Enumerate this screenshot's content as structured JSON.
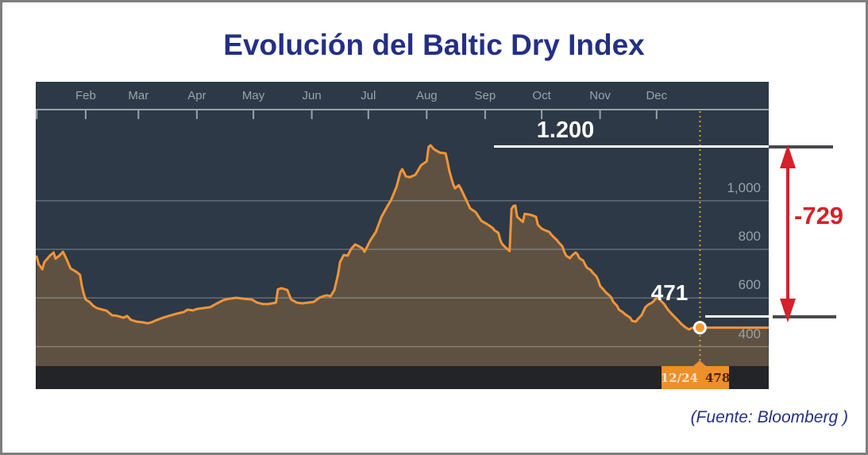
{
  "title": "Evolución del Baltic Dry Index",
  "source": "(Fuente: Bloomberg )",
  "chart_data": {
    "type": "area",
    "title": "Evolución del Baltic Dry Index",
    "legend": "none",
    "grid": "horizontal",
    "x_domain": [
      4.5,
      393.5
    ],
    "y_domain": [
      320,
      1375
    ],
    "x_months": [
      {
        "label": "",
        "day": 5
      },
      {
        "label": "Feb",
        "day": 31
      },
      {
        "label": "Mar",
        "day": 59
      },
      {
        "label": "Apr",
        "day": 90
      },
      {
        "label": "May",
        "day": 120
      },
      {
        "label": "Jun",
        "day": 151
      },
      {
        "label": "Jul",
        "day": 181
      },
      {
        "label": "Aug",
        "day": 212
      },
      {
        "label": "Sep",
        "day": 243
      },
      {
        "label": "Oct",
        "day": 273
      },
      {
        "label": "Nov",
        "day": 304
      },
      {
        "label": "Dec",
        "day": 334
      }
    ],
    "y_ticks": [
      {
        "label": "400",
        "value": 400
      },
      {
        "label": "600",
        "value": 600
      },
      {
        "label": "800",
        "value": 800
      },
      {
        "label": "1,000",
        "value": 1000
      }
    ],
    "series": [
      {
        "name": "Baltic Dry Index",
        "points": [
          [
            5,
            770
          ],
          [
            6,
            740
          ],
          [
            8,
            718
          ],
          [
            9,
            747
          ],
          [
            12,
            774
          ],
          [
            14,
            787
          ],
          [
            15,
            762
          ],
          [
            17,
            774
          ],
          [
            19,
            790
          ],
          [
            21,
            757
          ],
          [
            23,
            721
          ],
          [
            26,
            708
          ],
          [
            28,
            695
          ],
          [
            29,
            650
          ],
          [
            30,
            617
          ],
          [
            31,
            594
          ],
          [
            33,
            584
          ],
          [
            35,
            568
          ],
          [
            37,
            558
          ],
          [
            40,
            552
          ],
          [
            42,
            548
          ],
          [
            45,
            529
          ],
          [
            48,
            526
          ],
          [
            51,
            519
          ],
          [
            53,
            526
          ],
          [
            55,
            510
          ],
          [
            58,
            503
          ],
          [
            61,
            500
          ],
          [
            64,
            496
          ],
          [
            66,
            500
          ],
          [
            69,
            510
          ],
          [
            72,
            519
          ],
          [
            75,
            526
          ],
          [
            79,
            535
          ],
          [
            83,
            542
          ],
          [
            85,
            552
          ],
          [
            88,
            549
          ],
          [
            90,
            555
          ],
          [
            93,
            558
          ],
          [
            97,
            562
          ],
          [
            100,
            575
          ],
          [
            104,
            591
          ],
          [
            107,
            597
          ],
          [
            111,
            601
          ],
          [
            115,
            597
          ],
          [
            119,
            594
          ],
          [
            122,
            581
          ],
          [
            125,
            575
          ],
          [
            128,
            575
          ],
          [
            130,
            578
          ],
          [
            132,
            581
          ],
          [
            133,
            636
          ],
          [
            135,
            640
          ],
          [
            138,
            633
          ],
          [
            140,
            594
          ],
          [
            143,
            581
          ],
          [
            146,
            578
          ],
          [
            149,
            581
          ],
          [
            152,
            584
          ],
          [
            155,
            601
          ],
          [
            157,
            607
          ],
          [
            159,
            611
          ],
          [
            161,
            607
          ],
          [
            163,
            633
          ],
          [
            165,
            699
          ],
          [
            166,
            748
          ],
          [
            168,
            777
          ],
          [
            170,
            774
          ],
          [
            172,
            803
          ],
          [
            174,
            820
          ],
          [
            176,
            813
          ],
          [
            178,
            803
          ],
          [
            179,
            790
          ],
          [
            182,
            836
          ],
          [
            185,
            872
          ],
          [
            188,
            934
          ],
          [
            191,
            976
          ],
          [
            193,
            1002
          ],
          [
            196,
            1058
          ],
          [
            198,
            1117
          ],
          [
            199,
            1130
          ],
          [
            201,
            1100
          ],
          [
            203,
            1097
          ],
          [
            206,
            1107
          ],
          [
            209,
            1146
          ],
          [
            212,
            1162
          ],
          [
            213,
            1221
          ],
          [
            214,
            1228
          ],
          [
            216,
            1211
          ],
          [
            219,
            1198
          ],
          [
            222,
            1195
          ],
          [
            223,
            1162
          ],
          [
            224,
            1123
          ],
          [
            226,
            1068
          ],
          [
            227,
            1051
          ],
          [
            229,
            1064
          ],
          [
            230,
            1051
          ],
          [
            233,
            1002
          ],
          [
            235,
            969
          ],
          [
            238,
            953
          ],
          [
            241,
            917
          ],
          [
            244,
            904
          ],
          [
            247,
            888
          ],
          [
            248,
            878
          ],
          [
            250,
            868
          ],
          [
            251,
            839
          ],
          [
            252,
            822
          ],
          [
            254,
            806
          ],
          [
            256,
            793
          ],
          [
            257,
            966
          ],
          [
            258,
            978
          ],
          [
            259,
            980
          ],
          [
            260,
            934
          ],
          [
            261,
            927
          ],
          [
            263,
            913
          ],
          [
            264,
            946
          ],
          [
            266,
            944
          ],
          [
            268,
            940
          ],
          [
            270,
            934
          ],
          [
            271,
            901
          ],
          [
            273,
            885
          ],
          [
            275,
            878
          ],
          [
            277,
            872
          ],
          [
            278,
            862
          ],
          [
            280,
            846
          ],
          [
            281,
            839
          ],
          [
            282,
            829
          ],
          [
            284,
            812
          ],
          [
            285,
            790
          ],
          [
            286,
            774
          ],
          [
            288,
            764
          ],
          [
            289,
            774
          ],
          [
            291,
            787
          ],
          [
            292,
            780
          ],
          [
            293,
            764
          ],
          [
            295,
            754
          ],
          [
            296,
            738
          ],
          [
            297,
            725
          ],
          [
            299,
            715
          ],
          [
            300,
            705
          ],
          [
            302,
            689
          ],
          [
            303,
            673
          ],
          [
            304,
            650
          ],
          [
            306,
            633
          ],
          [
            307,
            623
          ],
          [
            309,
            610
          ],
          [
            310,
            601
          ],
          [
            311,
            584
          ],
          [
            313,
            568
          ],
          [
            314,
            552
          ],
          [
            316,
            542
          ],
          [
            317,
            535
          ],
          [
            318,
            529
          ],
          [
            320,
            519
          ],
          [
            321,
            506
          ],
          [
            323,
            503
          ],
          [
            324,
            513
          ],
          [
            326,
            529
          ],
          [
            327,
            545
          ],
          [
            328,
            562
          ],
          [
            330,
            575
          ],
          [
            331,
            578
          ],
          [
            332,
            584
          ],
          [
            334,
            601
          ],
          [
            335,
            607
          ],
          [
            336,
            591
          ],
          [
            338,
            575
          ],
          [
            340,
            552
          ],
          [
            342,
            535
          ],
          [
            344,
            519
          ],
          [
            346,
            503
          ],
          [
            347,
            494
          ],
          [
            349,
            481
          ],
          [
            351,
            471
          ],
          [
            352,
            474
          ],
          [
            353,
            477
          ],
          [
            355,
            481
          ],
          [
            356,
            479
          ],
          [
            357,
            478
          ],
          [
            370,
            478
          ],
          [
            393,
            478
          ]
        ]
      }
    ],
    "annotations": {
      "reference_high": {
        "label": "1.200",
        "value": 1200
      },
      "reference_low": {
        "label": "471",
        "value": 471
      },
      "delta": {
        "label": "-729",
        "value": -729
      },
      "crosshair": {
        "date": "12/24",
        "value": "478",
        "day": 357,
        "marker_value": 478
      }
    },
    "colors": {
      "line": "#f0953a",
      "area_fill": "rgba(240,150,54,0.26)",
      "chart_background": "#2d3946",
      "bottom_bar": "#232427",
      "badge": "#ee8f2a",
      "badge_date_text": "#f3e6cc",
      "badge_value_text": "#4d2410",
      "axis": "#98a2aa",
      "gridline": "rgba(210,220,228,0.32)",
      "dotted_crosshair": "#c9a23b",
      "marker_fill": "#f2992f",
      "marker_ring": "#ffffff",
      "reference_line": "#ffffff",
      "reference_stub": "#4a4a4d",
      "delta_red": "#d6202b",
      "title_navy": "#242f85"
    }
  }
}
